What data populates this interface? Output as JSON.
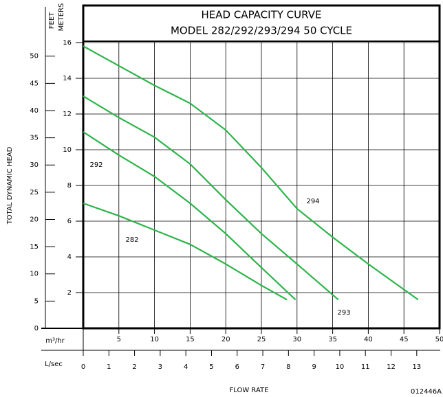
{
  "chart_data": {
    "type": "line",
    "title": [
      "HEAD CAPACITY CURVE",
      "MODEL 282/292/293/294  50 CYCLE"
    ],
    "y_axis_label": "TOTAL DYNAMIC HEAD",
    "y_unit": "METERS",
    "y2_unit": "FEET",
    "x_axis_label": "FLOW RATE",
    "x_unit": "m³/hr",
    "x2_unit": "L/sec",
    "code": "012446A",
    "xlim": [
      0,
      50
    ],
    "xticks": [
      5,
      10,
      15,
      20,
      25,
      30,
      35,
      40,
      45,
      50
    ],
    "x2lim": [
      0,
      13.89
    ],
    "x2ticks": [
      0,
      1,
      2,
      3,
      4,
      5,
      6,
      7,
      8,
      9,
      10,
      11,
      12,
      13
    ],
    "ylim": [
      0,
      16
    ],
    "yticks": [
      2,
      4,
      6,
      8,
      10,
      12,
      14,
      16
    ],
    "y2lim": [
      0,
      52.49
    ],
    "y2ticks": [
      0,
      5,
      10,
      15,
      20,
      25,
      30,
      35,
      40,
      45,
      50
    ],
    "grid": true,
    "series": [
      {
        "name": "294",
        "color": "#2db34a",
        "x": [
          0,
          5,
          10,
          15,
          20,
          25,
          30,
          35,
          40,
          47
        ],
        "values": [
          15.8,
          14.7,
          13.6,
          12.6,
          11.1,
          9.0,
          6.7,
          5.1,
          3.6,
          1.6
        ]
      },
      {
        "name": "293",
        "color": "#2db34a",
        "x": [
          0,
          5,
          10,
          15,
          20,
          25,
          30,
          35.8
        ],
        "values": [
          13.0,
          11.8,
          10.7,
          9.2,
          7.2,
          5.3,
          3.6,
          1.6
        ]
      },
      {
        "name": "292",
        "color": "#2db34a",
        "x": [
          0,
          5,
          10,
          15,
          20,
          25,
          29.8
        ],
        "values": [
          11.0,
          9.7,
          8.5,
          7.0,
          5.3,
          3.4,
          1.6
        ]
      },
      {
        "name": "282",
        "color": "#2db34a",
        "x": [
          0,
          5,
          10,
          15,
          20,
          25,
          28.6
        ],
        "values": [
          7.0,
          6.3,
          5.5,
          4.7,
          3.6,
          2.4,
          1.6
        ]
      }
    ]
  }
}
